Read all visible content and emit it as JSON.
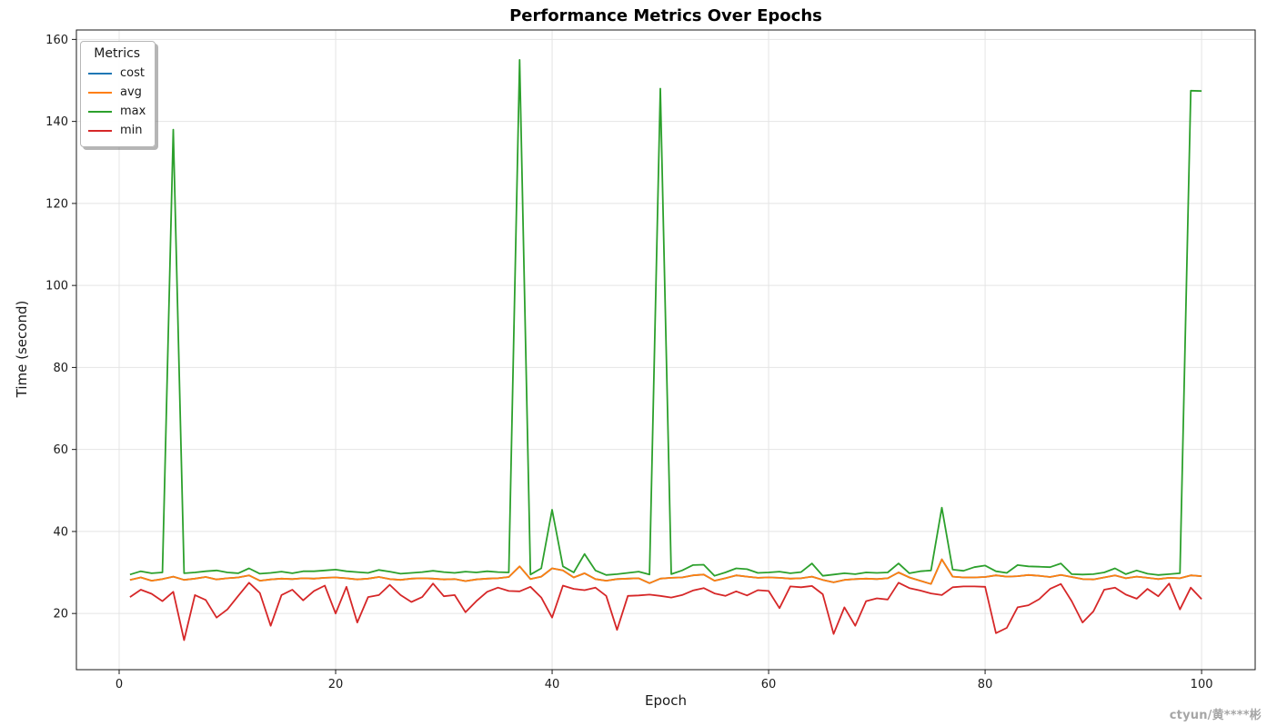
{
  "title": "Performance Metrics Over Epochs",
  "axis": {
    "xlabel": "Epoch",
    "ylabel": "Time (second)"
  },
  "watermark": "ctyun/黄****彬",
  "legend": {
    "title": "Metrics",
    "entries": [
      {
        "label": "cost",
        "color": "#1f77b4"
      },
      {
        "label": "avg",
        "color": "#ff7f0e"
      },
      {
        "label": "max",
        "color": "#2ca02c"
      },
      {
        "label": "min",
        "color": "#d62728"
      }
    ]
  },
  "colors": {
    "grid": "#e4e4e4",
    "spine": "#1a1a1a",
    "tick_label": "#1a1a1a"
  },
  "chart_data": {
    "type": "line",
    "title": "Performance Metrics Over Epochs",
    "xlabel": "Epoch",
    "ylabel": "Time (second)",
    "grid": true,
    "legend_position": "upper-left",
    "xlim": [
      -3.95,
      104.95
    ],
    "ylim": [
      6.3,
      162.3
    ],
    "x_ticks": [
      0,
      20,
      40,
      60,
      80,
      100
    ],
    "y_ticks": [
      20,
      40,
      60,
      80,
      100,
      120,
      140,
      160
    ],
    "x": [
      1,
      2,
      3,
      4,
      5,
      6,
      7,
      8,
      9,
      10,
      11,
      12,
      13,
      14,
      15,
      16,
      17,
      18,
      19,
      20,
      21,
      22,
      23,
      24,
      25,
      26,
      27,
      28,
      29,
      30,
      31,
      32,
      33,
      34,
      35,
      36,
      37,
      38,
      39,
      40,
      41,
      42,
      43,
      44,
      45,
      46,
      47,
      48,
      49,
      50,
      51,
      52,
      53,
      54,
      55,
      56,
      57,
      58,
      59,
      60,
      61,
      62,
      63,
      64,
      65,
      66,
      67,
      68,
      69,
      70,
      71,
      72,
      73,
      74,
      75,
      76,
      77,
      78,
      79,
      80,
      81,
      82,
      83,
      84,
      85,
      86,
      87,
      88,
      89,
      90,
      91,
      92,
      93,
      94,
      95,
      96,
      97,
      98,
      99,
      100
    ],
    "series": [
      {
        "name": "cost",
        "color": "#1f77b4",
        "values": [
          28.2,
          28.8,
          28.0,
          28.4,
          29.0,
          28.2,
          28.5,
          28.9,
          28.3,
          28.6,
          28.8,
          29.3,
          28.0,
          28.3,
          28.5,
          28.4,
          28.6,
          28.5,
          28.7,
          28.8,
          28.6,
          28.3,
          28.5,
          28.9,
          28.4,
          28.2,
          28.5,
          28.6,
          28.5,
          28.3,
          28.4,
          27.9,
          28.3,
          28.5,
          28.6,
          28.9,
          31.5,
          28.4,
          29.0,
          31.0,
          30.5,
          28.8,
          29.8,
          28.4,
          28.0,
          28.4,
          28.5,
          28.6,
          27.4,
          28.5,
          28.7,
          28.8,
          29.3,
          29.5,
          28.0,
          28.6,
          29.3,
          29.0,
          28.7,
          28.8,
          28.7,
          28.5,
          28.6,
          29.0,
          28.2,
          27.6,
          28.2,
          28.4,
          28.5,
          28.4,
          28.6,
          30.0,
          28.8,
          28.0,
          27.2,
          33.2,
          29.0,
          28.8,
          28.8,
          28.9,
          29.3,
          29.0,
          29.1,
          29.4,
          29.2,
          28.9,
          29.4,
          28.9,
          28.4,
          28.3,
          28.8,
          29.3,
          28.6,
          29.0,
          28.7,
          28.4,
          28.7,
          28.6,
          29.3,
          29.1
        ]
      },
      {
        "name": "avg",
        "color": "#ff7f0e",
        "values": [
          28.2,
          28.8,
          28.0,
          28.4,
          29.0,
          28.2,
          28.5,
          28.9,
          28.3,
          28.6,
          28.8,
          29.3,
          28.0,
          28.3,
          28.5,
          28.4,
          28.6,
          28.5,
          28.7,
          28.8,
          28.6,
          28.3,
          28.5,
          28.9,
          28.4,
          28.2,
          28.5,
          28.6,
          28.5,
          28.3,
          28.4,
          27.9,
          28.3,
          28.5,
          28.6,
          28.9,
          31.5,
          28.4,
          29.0,
          31.0,
          30.5,
          28.8,
          29.8,
          28.4,
          28.0,
          28.4,
          28.5,
          28.6,
          27.4,
          28.5,
          28.7,
          28.8,
          29.3,
          29.5,
          28.0,
          28.6,
          29.3,
          29.0,
          28.7,
          28.8,
          28.7,
          28.5,
          28.6,
          29.0,
          28.2,
          27.6,
          28.2,
          28.4,
          28.5,
          28.4,
          28.6,
          30.0,
          28.8,
          28.0,
          27.2,
          33.2,
          29.0,
          28.8,
          28.8,
          28.9,
          29.3,
          29.0,
          29.1,
          29.4,
          29.2,
          28.9,
          29.4,
          28.9,
          28.4,
          28.3,
          28.8,
          29.3,
          28.6,
          29.0,
          28.7,
          28.4,
          28.7,
          28.6,
          29.3,
          29.1
        ]
      },
      {
        "name": "max",
        "color": "#2ca02c",
        "values": [
          29.5,
          30.3,
          29.8,
          30.0,
          138.0,
          29.8,
          30.0,
          30.3,
          30.5,
          30.0,
          29.8,
          31.0,
          29.7,
          29.9,
          30.2,
          29.8,
          30.3,
          30.3,
          30.5,
          30.7,
          30.3,
          30.1,
          29.9,
          30.6,
          30.2,
          29.7,
          29.9,
          30.1,
          30.4,
          30.1,
          29.9,
          30.2,
          30.0,
          30.3,
          30.1,
          30.0,
          155.0,
          29.5,
          31.0,
          45.3,
          31.5,
          30.0,
          34.5,
          30.5,
          29.4,
          29.6,
          29.9,
          30.2,
          29.5,
          148.0,
          29.6,
          30.5,
          31.8,
          31.9,
          29.2,
          30.0,
          31.0,
          30.8,
          29.9,
          30.0,
          30.2,
          29.8,
          30.1,
          32.2,
          29.2,
          29.5,
          29.8,
          29.6,
          30.0,
          29.9,
          30.0,
          32.2,
          29.8,
          30.3,
          30.5,
          45.8,
          30.7,
          30.4,
          31.3,
          31.7,
          30.3,
          29.9,
          31.8,
          31.5,
          31.4,
          31.3,
          32.2,
          29.6,
          29.5,
          29.6,
          30.0,
          31.0,
          29.6,
          30.5,
          29.7,
          29.4,
          29.6,
          29.8,
          147.5,
          147.4
        ]
      },
      {
        "name": "min",
        "color": "#d62728",
        "values": [
          24.0,
          25.8,
          24.8,
          23.0,
          25.3,
          13.5,
          24.5,
          23.3,
          19.0,
          21.0,
          24.3,
          27.5,
          25.0,
          17.0,
          24.5,
          25.8,
          23.2,
          25.5,
          26.8,
          20.0,
          26.5,
          17.8,
          24.0,
          24.5,
          27.0,
          24.5,
          22.8,
          24.0,
          27.3,
          24.2,
          24.5,
          20.3,
          23.0,
          25.3,
          26.3,
          25.5,
          25.4,
          26.5,
          23.9,
          19.0,
          26.8,
          26.0,
          25.7,
          26.3,
          24.3,
          16.0,
          24.3,
          24.4,
          24.6,
          24.3,
          23.9,
          24.5,
          25.6,
          26.2,
          24.9,
          24.3,
          25.4,
          24.4,
          25.7,
          25.5,
          21.3,
          26.6,
          26.4,
          26.7,
          24.7,
          15.0,
          21.5,
          17.0,
          23.0,
          23.7,
          23.4,
          27.5,
          26.2,
          25.6,
          24.9,
          24.5,
          26.4,
          26.6,
          26.6,
          26.5,
          15.2,
          16.5,
          21.5,
          22.0,
          23.5,
          26.0,
          27.2,
          23.0,
          17.8,
          20.5,
          25.8,
          26.3,
          24.6,
          23.6,
          26.0,
          24.2,
          27.3,
          21.0,
          26.3,
          23.5
        ]
      }
    ]
  }
}
